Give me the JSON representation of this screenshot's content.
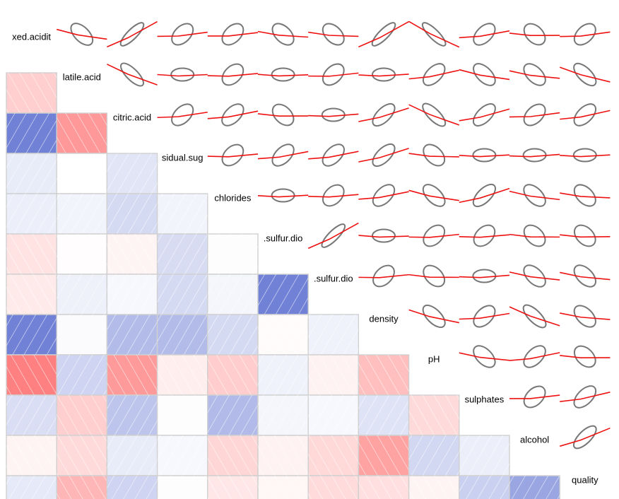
{
  "chart_data": {
    "type": "heatmap",
    "variables": [
      "fixed.acidity",
      "volatile.acidity",
      "citric.acid",
      "residual.sugar",
      "chlorides",
      "free.sulfur.dioxide",
      "total.sulfur.dioxide",
      "density",
      "pH",
      "sulphates",
      "alcohol",
      "quality"
    ],
    "diagonal_labels": [
      "xed.acidit",
      "latile.acid",
      "citric.acid",
      "sidual.sug",
      "chlorides",
      ".sulfur.dio",
      ".sulfur.dio",
      "density",
      "pH",
      "sulphates",
      "alcohol",
      "quality"
    ],
    "correlation_matrix": [
      [
        1.0,
        -0.26,
        0.67,
        0.11,
        0.09,
        -0.15,
        -0.11,
        0.67,
        -0.68,
        0.18,
        -0.06,
        0.12
      ],
      [
        -0.26,
        1.0,
        -0.55,
        0.0,
        0.06,
        -0.01,
        0.08,
        0.02,
        0.23,
        -0.26,
        -0.2,
        -0.39
      ],
      [
        0.67,
        -0.55,
        1.0,
        0.14,
        0.2,
        -0.06,
        0.04,
        0.36,
        -0.54,
        0.31,
        0.11,
        0.23
      ],
      [
        0.11,
        0.0,
        0.14,
        1.0,
        0.06,
        0.19,
        0.2,
        0.36,
        -0.09,
        0.01,
        0.04,
        0.01
      ],
      [
        0.09,
        0.06,
        0.2,
        0.06,
        1.0,
        0.01,
        0.05,
        0.2,
        -0.27,
        0.37,
        -0.22,
        -0.13
      ],
      [
        -0.15,
        -0.01,
        -0.06,
        0.19,
        0.01,
        1.0,
        0.67,
        -0.02,
        0.07,
        0.05,
        -0.07,
        -0.05
      ],
      [
        -0.11,
        0.08,
        0.04,
        0.2,
        0.05,
        0.67,
        1.0,
        0.07,
        -0.07,
        0.04,
        -0.21,
        -0.19
      ],
      [
        0.67,
        0.02,
        0.36,
        0.36,
        0.2,
        -0.02,
        0.07,
        1.0,
        -0.34,
        0.15,
        -0.5,
        -0.17
      ],
      [
        -0.68,
        0.23,
        -0.54,
        -0.09,
        -0.27,
        0.07,
        -0.07,
        -0.34,
        1.0,
        -0.2,
        0.21,
        -0.06
      ],
      [
        0.18,
        -0.26,
        0.31,
        0.01,
        0.37,
        0.05,
        0.04,
        0.15,
        -0.2,
        1.0,
        0.09,
        0.25
      ],
      [
        -0.06,
        -0.2,
        0.11,
        0.04,
        -0.22,
        -0.07,
        -0.21,
        -0.5,
        0.21,
        0.09,
        1.0,
        0.48
      ],
      [
        0.12,
        -0.39,
        0.23,
        0.01,
        -0.13,
        -0.05,
        -0.19,
        -0.17,
        -0.06,
        0.25,
        0.48,
        1.0
      ]
    ],
    "lower_panel": "shade",
    "upper_panel": "ellipse with red loess line",
    "colors": {
      "positive": "#2b45c2",
      "negative": "#ff4444",
      "zero": "#ffffff",
      "grid": "#d0d0d0",
      "line": "#ee1111",
      "ellipse": "#777777"
    }
  }
}
